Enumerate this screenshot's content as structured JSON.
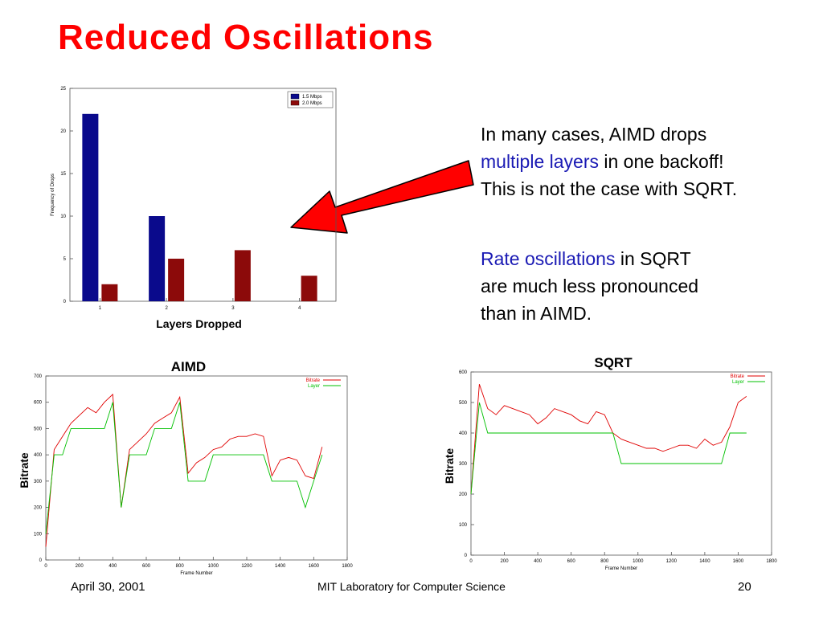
{
  "slide": {
    "title": "Reduced Oscillations",
    "para1": [
      "In many cases, AIMD drops",
      "multiple layers",
      "in one backoff!",
      "This is not the case with SQRT."
    ],
    "para2": [
      "Rate oscillations",
      "in SQRT",
      "are much less pronounced",
      "than in AIMD."
    ],
    "footer": {
      "date": "April 30, 2001",
      "center": "MIT Laboratory for Computer Science",
      "page": "20"
    }
  },
  "chart_data": [
    {
      "type": "bar",
      "x_label": "Layers Dropped",
      "y_label": "Frequency of Drops",
      "categories": [
        "1",
        "2",
        "3",
        "4"
      ],
      "series": [
        {
          "name": "1.5 Mbps",
          "color": "#0a0a8c",
          "values": [
            22,
            10,
            0,
            0
          ]
        },
        {
          "name": "2.0 Mbps",
          "color": "#8c0a0a",
          "values": [
            2,
            5,
            6,
            3
          ]
        }
      ],
      "ylim": [
        0,
        25
      ],
      "yticks": [
        0,
        5,
        10,
        15,
        20,
        25
      ],
      "legend": "top-right"
    },
    {
      "type": "line",
      "title": "AIMD",
      "x_label": "Frame Number",
      "y_label": "Bitrate",
      "x": [
        0,
        50,
        100,
        150,
        200,
        250,
        300,
        350,
        400,
        450,
        500,
        550,
        600,
        650,
        700,
        750,
        800,
        850,
        900,
        950,
        1000,
        1050,
        1100,
        1150,
        1200,
        1250,
        1300,
        1350,
        1400,
        1450,
        1500,
        1550,
        1600,
        1650
      ],
      "series": [
        {
          "name": "Bitrate",
          "color": "#e00000",
          "values": [
            50,
            420,
            470,
            520,
            550,
            580,
            560,
            600,
            630,
            200,
            420,
            450,
            480,
            520,
            540,
            560,
            620,
            330,
            370,
            390,
            420,
            430,
            460,
            470,
            470,
            480,
            470,
            320,
            380,
            390,
            380,
            320,
            310,
            430
          ]
        },
        {
          "name": "Layer",
          "color": "#00c000",
          "values": [
            100,
            400,
            400,
            500,
            500,
            500,
            500,
            500,
            600,
            200,
            400,
            400,
            400,
            500,
            500,
            500,
            600,
            300,
            300,
            300,
            400,
            400,
            400,
            400,
            400,
            400,
            400,
            300,
            300,
            300,
            300,
            200,
            300,
            400
          ]
        }
      ],
      "xlim": [
        0,
        1800
      ],
      "xticks": [
        0,
        200,
        400,
        600,
        800,
        1000,
        1200,
        1400,
        1600,
        1800
      ],
      "ylim": [
        0,
        700
      ],
      "yticks": [
        0,
        100,
        200,
        300,
        400,
        500,
        600,
        700
      ],
      "legend": "top-right"
    },
    {
      "type": "line",
      "title": "SQRT",
      "x_label": "Frame Number",
      "y_label": "Bitrate",
      "x": [
        0,
        50,
        100,
        150,
        200,
        250,
        300,
        350,
        400,
        450,
        500,
        550,
        600,
        650,
        700,
        750,
        800,
        850,
        900,
        950,
        1000,
        1050,
        1100,
        1150,
        1200,
        1250,
        1300,
        1350,
        1400,
        1450,
        1500,
        1550,
        1600,
        1650
      ],
      "series": [
        {
          "name": "Bitrate",
          "color": "#e00000",
          "values": [
            200,
            560,
            480,
            460,
            490,
            480,
            470,
            460,
            430,
            450,
            480,
            470,
            460,
            440,
            430,
            470,
            460,
            400,
            380,
            370,
            360,
            350,
            350,
            340,
            350,
            360,
            360,
            350,
            380,
            360,
            370,
            420,
            500,
            520
          ]
        },
        {
          "name": "Layer",
          "color": "#00c000",
          "values": [
            200,
            500,
            400,
            400,
            400,
            400,
            400,
            400,
            400,
            400,
            400,
            400,
            400,
            400,
            400,
            400,
            400,
            400,
            300,
            300,
            300,
            300,
            300,
            300,
            300,
            300,
            300,
            300,
            300,
            300,
            300,
            400,
            400,
            400
          ]
        }
      ],
      "xlim": [
        0,
        1800
      ],
      "xticks": [
        0,
        200,
        400,
        600,
        800,
        1000,
        1200,
        1400,
        1600,
        1800
      ],
      "ylim": [
        0,
        600
      ],
      "yticks": [
        0,
        100,
        200,
        300,
        400,
        500,
        600
      ],
      "legend": "top-right"
    }
  ]
}
